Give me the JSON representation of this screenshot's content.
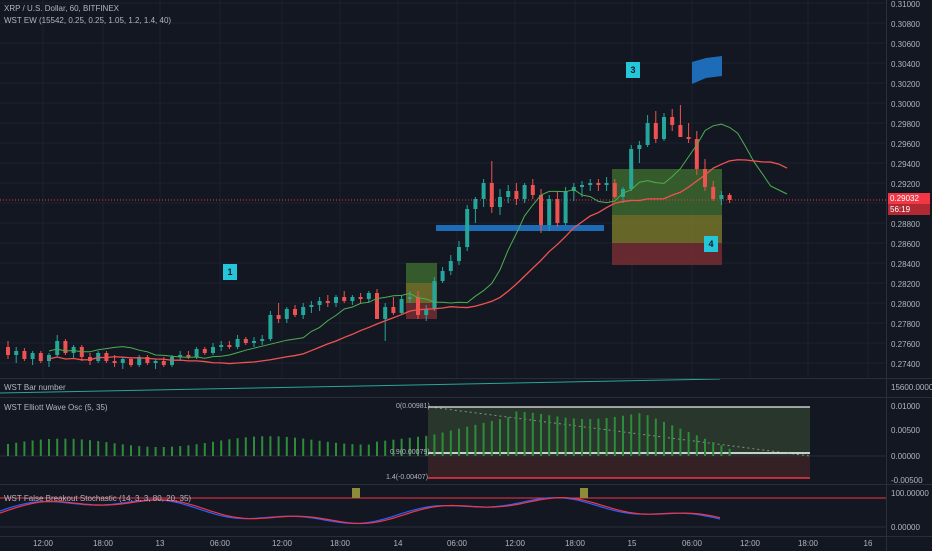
{
  "main": {
    "title": "XRP / U.S. Dollar, 60, BITFINEX",
    "indicator": "WST EW (15542, 0.25, 0.25, 1.05, 1.2, 1.4, 40)",
    "price_ticks": [
      "0.31000",
      "0.30800",
      "0.30600",
      "0.30400",
      "0.30200",
      "0.30000",
      "0.29800",
      "0.29600",
      "0.29400",
      "0.29200",
      "0.29000",
      "0.28800",
      "0.28600",
      "0.28400",
      "0.28200",
      "0.28000",
      "0.27800",
      "0.27600",
      "0.27400"
    ],
    "current_price": "0.29032",
    "countdown": "56:19",
    "wave_labels": [
      "1",
      "3",
      "4"
    ]
  },
  "bar_number": {
    "title": "WST Bar number",
    "value": "15600.00000"
  },
  "elliott": {
    "title": "WST Elliott Wave Osc (5, 35)",
    "ticks": [
      "0.01000",
      "0.00500",
      "0.00000",
      "-0.00500"
    ],
    "level_top": "0(0.00981)",
    "level_mid": "0.9(0.00079)",
    "level_low": "1.4(-0.00407)"
  },
  "stoch": {
    "title": "WST False Breakout Stochastic (14, 3, 3, 80, 20, 35)",
    "ticks": [
      "100.00000",
      "0.00000"
    ]
  },
  "time_labels": [
    "12:00",
    "18:00",
    "13",
    "06:00",
    "12:00",
    "18:00",
    "14",
    "06:00",
    "12:00",
    "18:00",
    "15",
    "06:00",
    "12:00",
    "18:00",
    "16"
  ],
  "colors": {
    "background": "#131722",
    "up": "#26a69a",
    "down": "#ef5350",
    "fast_ma": "#4caf50",
    "slow_ma": "#ef5350",
    "wave_marker": "#26c6da",
    "zone_blue": "#1e6bb8"
  }
}
